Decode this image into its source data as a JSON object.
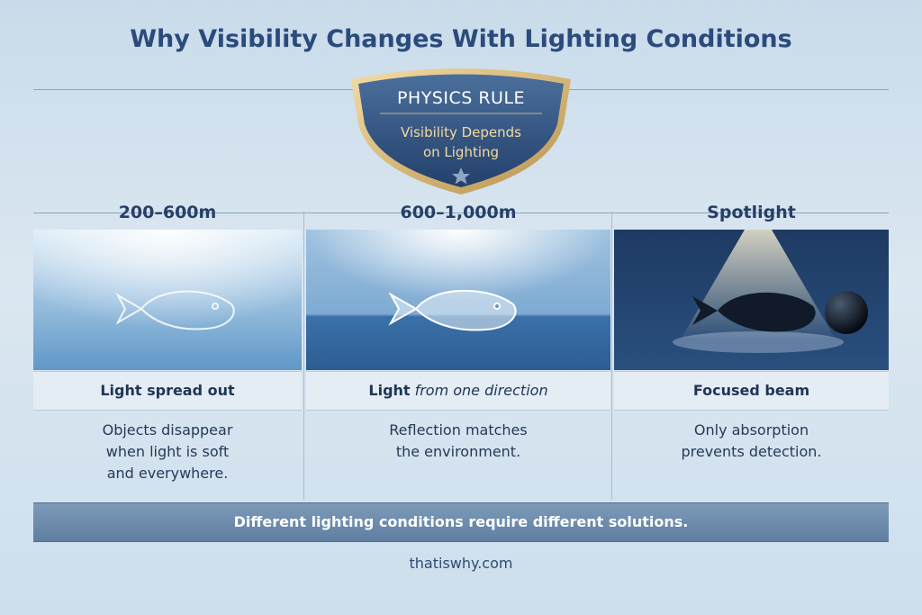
{
  "title": "Why Visibility Changes With Lighting Conditions",
  "badge": {
    "label": "PHYSICS RULE",
    "text_lines": [
      "Visibility Depends",
      "on Lighting"
    ]
  },
  "columns": [
    {
      "heading": "200–600m",
      "caption": "Light spread out",
      "description_lines": [
        "Objects disappear",
        "when light is soft",
        "and everywhere."
      ]
    },
    {
      "heading": "600–1,000m",
      "caption": "Light",
      "caption_emphasis": "from one direction",
      "description_lines": [
        "Reflection matches",
        "the environment."
      ]
    },
    {
      "heading": "Spotlight",
      "caption": "Focused beam",
      "description_lines": [
        "Only absorption",
        "prevents detection."
      ]
    }
  ],
  "banner": "Different lighting conditions require different solutions.",
  "footer": "thatiswhy.com"
}
